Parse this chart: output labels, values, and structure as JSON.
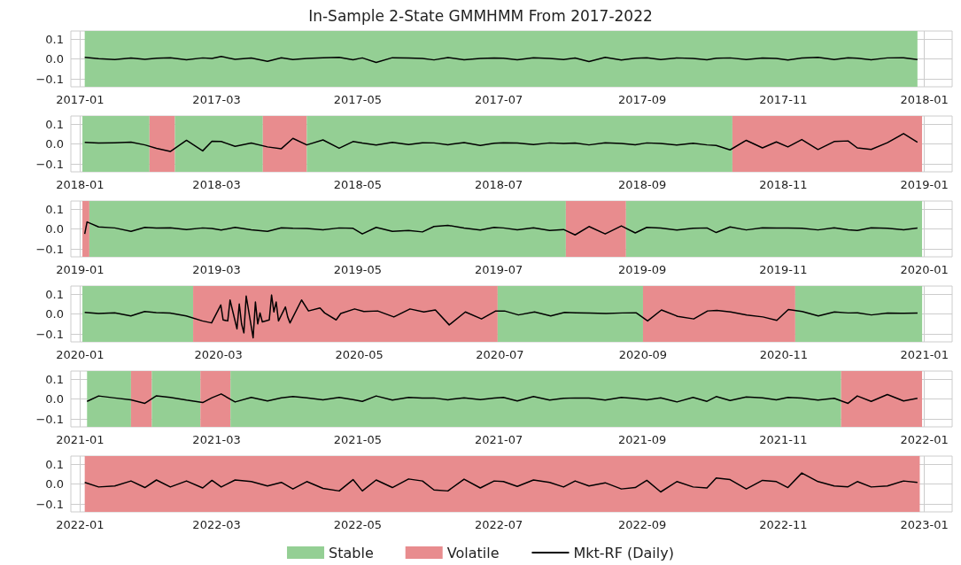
{
  "chart_data": [
    {
      "type": "line",
      "title": "In-Sample 2-State GMMHMM From 2017-2022",
      "grid": true,
      "xlim": [
        "2016-12-28",
        "2018-01-13"
      ],
      "ylim": [
        -0.14,
        0.14
      ],
      "xticks": [
        {
          "value": "2017-01-01",
          "label": "2017-01"
        },
        {
          "value": "2017-03-01",
          "label": "2017-03"
        },
        {
          "value": "2017-05-01",
          "label": "2017-05"
        },
        {
          "value": "2017-07-01",
          "label": "2017-07"
        },
        {
          "value": "2017-09-01",
          "label": "2017-09"
        },
        {
          "value": "2017-11-01",
          "label": "2017-11"
        },
        {
          "value": "2018-01-01",
          "label": "2018-01"
        }
      ],
      "yticks": [
        {
          "value": -0.1,
          "label": "−0.1"
        },
        {
          "value": 0,
          "label": "0.0"
        },
        {
          "value": 0.1,
          "label": "0.1"
        }
      ],
      "bands": [
        {
          "axis": "x",
          "from": "2017-01-03",
          "to": "2017-12-29",
          "label": "Stable",
          "color": "#94cf94"
        }
      ],
      "series": [
        {
          "color": "#000000",
          "x": [
            "2017-01-03",
            "2017-01-09",
            "2017-01-16",
            "2017-01-23",
            "2017-01-29",
            "2017-02-03",
            "2017-02-09",
            "2017-02-16",
            "2017-02-23",
            "2017-02-27",
            "2017-03-03",
            "2017-03-09",
            "2017-03-16",
            "2017-03-23",
            "2017-03-29",
            "2017-04-03",
            "2017-04-09",
            "2017-04-16",
            "2017-04-23",
            "2017-04-29",
            "2017-05-03",
            "2017-05-09",
            "2017-05-16",
            "2017-05-23",
            "2017-05-29",
            "2017-06-03",
            "2017-06-09",
            "2017-06-16",
            "2017-06-23",
            "2017-06-29",
            "2017-07-03",
            "2017-07-09",
            "2017-07-16",
            "2017-07-23",
            "2017-07-29",
            "2017-08-03",
            "2017-08-09",
            "2017-08-16",
            "2017-08-23",
            "2017-08-29",
            "2017-09-03",
            "2017-09-09",
            "2017-09-16",
            "2017-09-23",
            "2017-09-29",
            "2017-10-03",
            "2017-10-09",
            "2017-10-16",
            "2017-10-23",
            "2017-10-29",
            "2017-11-03",
            "2017-11-09",
            "2017-11-16",
            "2017-11-23",
            "2017-11-29",
            "2017-12-03",
            "2017-12-09",
            "2017-12-16",
            "2017-12-23",
            "2017-12-29"
          ],
          "values": [
            0.008,
            0.001,
            -0.003,
            0.004,
            -0.002,
            0.003,
            0.006,
            -0.004,
            0.005,
            0.002,
            0.012,
            -0.002,
            0.004,
            -0.012,
            0.006,
            -0.003,
            0.002,
            0.006,
            0.008,
            -0.004,
            0.005,
            -0.018,
            0.006,
            0.004,
            0.002,
            -0.005,
            0.007,
            -0.004,
            0.002,
            0.004,
            0.003,
            -0.004,
            0.006,
            0.002,
            -0.003,
            0.004,
            -0.013,
            0.008,
            -0.006,
            0.003,
            0.006,
            -0.003,
            0.005,
            0.002,
            -0.004,
            0.003,
            0.005,
            -0.003,
            0.004,
            0.002,
            -0.006,
            0.004,
            0.008,
            -0.003,
            0.006,
            0.003,
            -0.004,
            0.005,
            0.006,
            -0.003
          ]
        }
      ]
    },
    {
      "type": "line",
      "grid": true,
      "xlim": [
        "2017-12-28",
        "2019-01-13"
      ],
      "ylim": [
        -0.14,
        0.14
      ],
      "xticks": [
        {
          "value": "2018-01-01",
          "label": "2018-01"
        },
        {
          "value": "2018-03-01",
          "label": "2018-03"
        },
        {
          "value": "2018-05-01",
          "label": "2018-05"
        },
        {
          "value": "2018-07-01",
          "label": "2018-07"
        },
        {
          "value": "2018-09-01",
          "label": "2018-09"
        },
        {
          "value": "2018-11-01",
          "label": "2018-11"
        },
        {
          "value": "2019-01-01",
          "label": "2019-01"
        }
      ],
      "yticks": [
        {
          "value": -0.1,
          "label": "−0.1"
        },
        {
          "value": 0,
          "label": "0.0"
        },
        {
          "value": 0.1,
          "label": "0.1"
        }
      ],
      "bands": [
        {
          "axis": "x",
          "from": "2018-01-02",
          "to": "2018-01-31",
          "color": "#94cf94"
        },
        {
          "axis": "x",
          "from": "2018-01-31",
          "to": "2018-02-11",
          "color": "#e88c8e"
        },
        {
          "axis": "x",
          "from": "2018-02-11",
          "to": "2018-03-21",
          "color": "#94cf94"
        },
        {
          "axis": "x",
          "from": "2018-03-21",
          "to": "2018-04-09",
          "color": "#e88c8e"
        },
        {
          "axis": "x",
          "from": "2018-04-09",
          "to": "2018-10-10",
          "color": "#94cf94"
        },
        {
          "axis": "x",
          "from": "2018-10-10",
          "to": "2018-12-31",
          "color": "#e88c8e"
        }
      ],
      "series": [
        {
          "color": "#000000",
          "x": [
            "2018-01-03",
            "2018-01-09",
            "2018-01-16",
            "2018-01-23",
            "2018-01-29",
            "2018-02-03",
            "2018-02-09",
            "2018-02-16",
            "2018-02-23",
            "2018-02-27",
            "2018-03-03",
            "2018-03-09",
            "2018-03-16",
            "2018-03-23",
            "2018-03-29",
            "2018-04-03",
            "2018-04-09",
            "2018-04-16",
            "2018-04-23",
            "2018-04-29",
            "2018-05-03",
            "2018-05-09",
            "2018-05-16",
            "2018-05-23",
            "2018-05-29",
            "2018-06-03",
            "2018-06-09",
            "2018-06-16",
            "2018-06-23",
            "2018-06-29",
            "2018-07-03",
            "2018-07-09",
            "2018-07-16",
            "2018-07-23",
            "2018-07-29",
            "2018-08-03",
            "2018-08-09",
            "2018-08-16",
            "2018-08-23",
            "2018-08-29",
            "2018-09-03",
            "2018-09-09",
            "2018-09-16",
            "2018-09-23",
            "2018-09-29",
            "2018-10-03",
            "2018-10-09",
            "2018-10-16",
            "2018-10-23",
            "2018-10-29",
            "2018-11-03",
            "2018-11-09",
            "2018-11-16",
            "2018-11-23",
            "2018-11-29",
            "2018-12-03",
            "2018-12-09",
            "2018-12-16",
            "2018-12-23",
            "2018-12-29"
          ],
          "values": [
            0.008,
            0.004,
            0.006,
            0.009,
            -0.005,
            -0.022,
            -0.038,
            0.018,
            -0.035,
            0.013,
            0.012,
            -0.012,
            0.004,
            -0.015,
            -0.024,
            0.028,
            -0.005,
            0.02,
            -0.022,
            0.012,
            0.004,
            -0.006,
            0.008,
            -0.003,
            0.006,
            0.005,
            -0.004,
            0.007,
            -0.008,
            0.003,
            0.006,
            0.004,
            -0.003,
            0.005,
            0.002,
            0.004,
            -0.005,
            0.006,
            0.002,
            -0.004,
            0.005,
            0.002,
            -0.006,
            0.003,
            -0.005,
            -0.008,
            -0.03,
            0.018,
            -0.02,
            0.01,
            -0.015,
            0.022,
            -0.028,
            0.012,
            0.015,
            -0.02,
            -0.028,
            0.006,
            0.052,
            0.008
          ]
        }
      ]
    },
    {
      "type": "line",
      "grid": true,
      "xlim": [
        "2018-12-28",
        "2020-01-13"
      ],
      "ylim": [
        -0.14,
        0.14
      ],
      "xticks": [
        {
          "value": "2019-01-01",
          "label": "2019-01"
        },
        {
          "value": "2019-03-01",
          "label": "2019-03"
        },
        {
          "value": "2019-05-01",
          "label": "2019-05"
        },
        {
          "value": "2019-07-01",
          "label": "2019-07"
        },
        {
          "value": "2019-09-01",
          "label": "2019-09"
        },
        {
          "value": "2019-11-01",
          "label": "2019-11"
        },
        {
          "value": "2020-01-01",
          "label": "2020-01"
        }
      ],
      "yticks": [
        {
          "value": -0.1,
          "label": "−0.1"
        },
        {
          "value": 0,
          "label": "0.0"
        },
        {
          "value": 0.1,
          "label": "0.1"
        }
      ],
      "bands": [
        {
          "axis": "x",
          "from": "2019-01-02",
          "to": "2019-01-05",
          "color": "#e88c8e"
        },
        {
          "axis": "x",
          "from": "2019-01-05",
          "to": "2019-07-30",
          "color": "#94cf94"
        },
        {
          "axis": "x",
          "from": "2019-07-30",
          "to": "2019-08-25",
          "color": "#e88c8e"
        },
        {
          "axis": "x",
          "from": "2019-08-25",
          "to": "2019-12-31",
          "color": "#94cf94"
        }
      ],
      "series": [
        {
          "color": "#000000",
          "x": [
            "2019-01-03",
            "2019-01-04",
            "2019-01-09",
            "2019-01-16",
            "2019-01-23",
            "2019-01-29",
            "2019-02-03",
            "2019-02-09",
            "2019-02-16",
            "2019-02-23",
            "2019-02-27",
            "2019-03-03",
            "2019-03-09",
            "2019-03-16",
            "2019-03-23",
            "2019-03-29",
            "2019-04-03",
            "2019-04-09",
            "2019-04-16",
            "2019-04-23",
            "2019-04-29",
            "2019-05-03",
            "2019-05-09",
            "2019-05-16",
            "2019-05-23",
            "2019-05-29",
            "2019-06-03",
            "2019-06-09",
            "2019-06-16",
            "2019-06-23",
            "2019-06-29",
            "2019-07-03",
            "2019-07-09",
            "2019-07-16",
            "2019-07-23",
            "2019-07-29",
            "2019-08-03",
            "2019-08-09",
            "2019-08-16",
            "2019-08-23",
            "2019-08-29",
            "2019-09-03",
            "2019-09-09",
            "2019-09-16",
            "2019-09-23",
            "2019-09-29",
            "2019-10-03",
            "2019-10-09",
            "2019-10-16",
            "2019-10-23",
            "2019-10-29",
            "2019-11-03",
            "2019-11-09",
            "2019-11-16",
            "2019-11-23",
            "2019-11-29",
            "2019-12-03",
            "2019-12-09",
            "2019-12-16",
            "2019-12-23",
            "2019-12-29"
          ],
          "values": [
            -0.025,
            0.035,
            0.01,
            0.005,
            -0.012,
            0.008,
            0.004,
            0.006,
            -0.003,
            0.005,
            0.002,
            -0.006,
            0.008,
            -0.004,
            -0.012,
            0.006,
            0.003,
            0.002,
            -0.004,
            0.005,
            0.003,
            -0.025,
            0.008,
            -0.012,
            -0.008,
            -0.015,
            0.012,
            0.018,
            0.004,
            -0.006,
            0.008,
            0.005,
            -0.004,
            0.006,
            -0.008,
            -0.003,
            -0.03,
            0.012,
            -0.025,
            0.015,
            -0.02,
            0.008,
            0.004,
            -0.006,
            0.003,
            0.005,
            -0.018,
            0.01,
            -0.005,
            0.006,
            0.004,
            0.004,
            0.003,
            -0.005,
            0.006,
            -0.004,
            -0.008,
            0.006,
            0.003,
            -0.004,
            0.004
          ]
        }
      ]
    },
    {
      "type": "line",
      "grid": true,
      "xlim": [
        "2019-12-28",
        "2021-01-13"
      ],
      "ylim": [
        -0.14,
        0.14
      ],
      "xticks": [
        {
          "value": "2020-01-01",
          "label": "2020-01"
        },
        {
          "value": "2020-03-01",
          "label": "2020-03"
        },
        {
          "value": "2020-05-01",
          "label": "2020-05"
        },
        {
          "value": "2020-07-01",
          "label": "2020-07"
        },
        {
          "value": "2020-09-01",
          "label": "2020-09"
        },
        {
          "value": "2020-11-01",
          "label": "2020-11"
        },
        {
          "value": "2021-01-01",
          "label": "2021-01"
        }
      ],
      "yticks": [
        {
          "value": -0.1,
          "label": "−0.1"
        },
        {
          "value": 0,
          "label": "0.0"
        },
        {
          "value": 0.1,
          "label": "0.1"
        }
      ],
      "bands": [
        {
          "axis": "x",
          "from": "2020-01-02",
          "to": "2020-02-19",
          "color": "#94cf94"
        },
        {
          "axis": "x",
          "from": "2020-02-19",
          "to": "2020-06-30",
          "color": "#e88c8e"
        },
        {
          "axis": "x",
          "from": "2020-06-30",
          "to": "2020-09-01",
          "color": "#94cf94"
        },
        {
          "axis": "x",
          "from": "2020-09-01",
          "to": "2020-11-06",
          "color": "#e88c8e"
        },
        {
          "axis": "x",
          "from": "2020-11-06",
          "to": "2020-12-31",
          "color": "#94cf94"
        }
      ],
      "series": [
        {
          "color": "#000000",
          "x": [
            "2020-01-03",
            "2020-01-09",
            "2020-01-16",
            "2020-01-23",
            "2020-01-29",
            "2020-02-03",
            "2020-02-09",
            "2020-02-16",
            "2020-02-23",
            "2020-02-27",
            "2020-03-02",
            "2020-03-03",
            "2020-03-05",
            "2020-03-06",
            "2020-03-09",
            "2020-03-10",
            "2020-03-11",
            "2020-03-12",
            "2020-03-13",
            "2020-03-16",
            "2020-03-17",
            "2020-03-18",
            "2020-03-19",
            "2020-03-20",
            "2020-03-23",
            "2020-03-24",
            "2020-03-25",
            "2020-03-26",
            "2020-03-27",
            "2020-03-30",
            "2020-03-31",
            "2020-04-01",
            "2020-04-06",
            "2020-04-09",
            "2020-04-14",
            "2020-04-16",
            "2020-04-21",
            "2020-04-23",
            "2020-04-29",
            "2020-05-03",
            "2020-05-09",
            "2020-05-16",
            "2020-05-23",
            "2020-05-29",
            "2020-06-03",
            "2020-06-09",
            "2020-06-16",
            "2020-06-23",
            "2020-06-29",
            "2020-07-03",
            "2020-07-09",
            "2020-07-16",
            "2020-07-23",
            "2020-07-29",
            "2020-08-03",
            "2020-08-09",
            "2020-08-16",
            "2020-08-23",
            "2020-08-29",
            "2020-09-03",
            "2020-09-09",
            "2020-09-16",
            "2020-09-23",
            "2020-09-29",
            "2020-10-03",
            "2020-10-09",
            "2020-10-16",
            "2020-10-23",
            "2020-10-29",
            "2020-11-03",
            "2020-11-09",
            "2020-11-16",
            "2020-11-23",
            "2020-11-29",
            "2020-12-03",
            "2020-12-09",
            "2020-12-16",
            "2020-12-23",
            "2020-12-29"
          ],
          "values": [
            0.008,
            0.002,
            0.006,
            -0.01,
            0.012,
            0.007,
            0.004,
            -0.01,
            -0.035,
            -0.045,
            0.045,
            -0.03,
            -0.035,
            0.07,
            -0.075,
            0.05,
            -0.05,
            -0.095,
            0.09,
            -0.12,
            0.06,
            -0.05,
            0.005,
            -0.04,
            -0.03,
            0.095,
            0.01,
            0.06,
            -0.035,
            0.035,
            -0.015,
            -0.045,
            0.07,
            0.015,
            0.03,
            0.005,
            -0.03,
            0.002,
            0.025,
            0.012,
            0.015,
            -0.015,
            0.025,
            0.01,
            0.02,
            -0.055,
            0.01,
            -0.025,
            0.014,
            0.015,
            -0.005,
            0.01,
            -0.01,
            0.008,
            0.006,
            0.004,
            0.002,
            0.005,
            0.006,
            -0.035,
            0.02,
            -0.012,
            -0.025,
            0.015,
            0.018,
            0.01,
            -0.006,
            -0.015,
            -0.032,
            0.022,
            0.012,
            -0.01,
            0.01,
            0.005,
            0.006,
            -0.005,
            0.004,
            0.003,
            0.004
          ]
        }
      ]
    },
    {
      "type": "line",
      "grid": true,
      "xlim": [
        "2020-12-28",
        "2022-01-13"
      ],
      "ylim": [
        -0.14,
        0.14
      ],
      "xticks": [
        {
          "value": "2021-01-01",
          "label": "2021-01"
        },
        {
          "value": "2021-03-01",
          "label": "2021-03"
        },
        {
          "value": "2021-05-01",
          "label": "2021-05"
        },
        {
          "value": "2021-07-01",
          "label": "2021-07"
        },
        {
          "value": "2021-09-01",
          "label": "2021-09"
        },
        {
          "value": "2021-11-01",
          "label": "2021-11"
        },
        {
          "value": "2022-01-01",
          "label": "2022-01"
        }
      ],
      "yticks": [
        {
          "value": -0.1,
          "label": "−0.1"
        },
        {
          "value": 0,
          "label": "0.0"
        },
        {
          "value": 0.1,
          "label": "0.1"
        }
      ],
      "bands": [
        {
          "axis": "x",
          "from": "2021-01-04",
          "to": "2021-01-23",
          "color": "#94cf94"
        },
        {
          "axis": "x",
          "from": "2021-01-23",
          "to": "2021-02-01",
          "color": "#e88c8e"
        },
        {
          "axis": "x",
          "from": "2021-02-01",
          "to": "2021-02-22",
          "color": "#94cf94"
        },
        {
          "axis": "x",
          "from": "2021-02-22",
          "to": "2021-03-07",
          "color": "#e88c8e"
        },
        {
          "axis": "x",
          "from": "2021-03-07",
          "to": "2021-11-26",
          "color": "#94cf94"
        },
        {
          "axis": "x",
          "from": "2021-11-26",
          "to": "2021-12-31",
          "color": "#e88c8e"
        }
      ],
      "series": [
        {
          "color": "#000000",
          "x": [
            "2021-01-04",
            "2021-01-09",
            "2021-01-16",
            "2021-01-23",
            "2021-01-29",
            "2021-02-03",
            "2021-02-09",
            "2021-02-16",
            "2021-02-23",
            "2021-02-27",
            "2021-03-03",
            "2021-03-09",
            "2021-03-16",
            "2021-03-23",
            "2021-03-29",
            "2021-04-03",
            "2021-04-09",
            "2021-04-16",
            "2021-04-23",
            "2021-04-29",
            "2021-05-03",
            "2021-05-09",
            "2021-05-16",
            "2021-05-23",
            "2021-05-29",
            "2021-06-03",
            "2021-06-09",
            "2021-06-16",
            "2021-06-23",
            "2021-06-29",
            "2021-07-03",
            "2021-07-09",
            "2021-07-16",
            "2021-07-23",
            "2021-07-29",
            "2021-08-03",
            "2021-08-09",
            "2021-08-16",
            "2021-08-23",
            "2021-08-29",
            "2021-09-03",
            "2021-09-09",
            "2021-09-16",
            "2021-09-23",
            "2021-09-29",
            "2021-10-03",
            "2021-10-09",
            "2021-10-16",
            "2021-10-23",
            "2021-10-29",
            "2021-11-03",
            "2021-11-09",
            "2021-11-16",
            "2021-11-23",
            "2021-11-29",
            "2021-12-03",
            "2021-12-09",
            "2021-12-16",
            "2021-12-23",
            "2021-12-29"
          ],
          "values": [
            -0.012,
            0.015,
            0.005,
            -0.004,
            -0.022,
            0.016,
            0.008,
            -0.006,
            -0.018,
            0.006,
            0.025,
            -0.015,
            0.008,
            -0.01,
            0.006,
            0.012,
            0.006,
            -0.004,
            0.008,
            -0.003,
            -0.012,
            0.015,
            -0.006,
            0.008,
            0.004,
            0.005,
            -0.004,
            0.006,
            -0.003,
            0.004,
            0.008,
            -0.01,
            0.012,
            -0.006,
            0.003,
            0.005,
            0.004,
            -0.006,
            0.008,
            0.002,
            -0.004,
            0.006,
            -0.015,
            0.008,
            -0.012,
            0.012,
            -0.008,
            0.01,
            0.006,
            -0.004,
            0.008,
            0.004,
            -0.006,
            0.003,
            -0.022,
            0.015,
            -0.012,
            0.022,
            -0.01,
            0.003
          ]
        }
      ]
    },
    {
      "type": "line",
      "grid": true,
      "legend": "bottom",
      "xlim": [
        "2021-12-28",
        "2023-01-13"
      ],
      "ylim": [
        -0.14,
        0.14
      ],
      "xticks": [
        {
          "value": "2022-01-01",
          "label": "2022-01"
        },
        {
          "value": "2022-03-01",
          "label": "2022-03"
        },
        {
          "value": "2022-05-01",
          "label": "2022-05"
        },
        {
          "value": "2022-07-01",
          "label": "2022-07"
        },
        {
          "value": "2022-09-01",
          "label": "2022-09"
        },
        {
          "value": "2022-11-01",
          "label": "2022-11"
        },
        {
          "value": "2023-01-01",
          "label": "2023-01"
        }
      ],
      "yticks": [
        {
          "value": -0.1,
          "label": "−0.1"
        },
        {
          "value": 0,
          "label": "0.0"
        },
        {
          "value": 0.1,
          "label": "0.1"
        }
      ],
      "bands": [
        {
          "axis": "x",
          "from": "2022-01-03",
          "to": "2022-12-30",
          "label": "Volatile",
          "color": "#e88c8e"
        }
      ],
      "series": [
        {
          "name": "Mkt-RF (Daily)",
          "color": "#000000",
          "x": [
            "2022-01-03",
            "2022-01-09",
            "2022-01-16",
            "2022-01-23",
            "2022-01-29",
            "2022-02-03",
            "2022-02-09",
            "2022-02-16",
            "2022-02-23",
            "2022-02-27",
            "2022-03-03",
            "2022-03-09",
            "2022-03-16",
            "2022-03-23",
            "2022-03-29",
            "2022-04-03",
            "2022-04-09",
            "2022-04-16",
            "2022-04-23",
            "2022-04-29",
            "2022-05-03",
            "2022-05-09",
            "2022-05-16",
            "2022-05-23",
            "2022-05-29",
            "2022-06-03",
            "2022-06-09",
            "2022-06-16",
            "2022-06-23",
            "2022-06-29",
            "2022-07-03",
            "2022-07-09",
            "2022-07-16",
            "2022-07-23",
            "2022-07-29",
            "2022-08-03",
            "2022-08-09",
            "2022-08-16",
            "2022-08-23",
            "2022-08-29",
            "2022-09-03",
            "2022-09-09",
            "2022-09-16",
            "2022-09-23",
            "2022-09-29",
            "2022-10-03",
            "2022-10-09",
            "2022-10-16",
            "2022-10-23",
            "2022-10-29",
            "2022-11-03",
            "2022-11-09",
            "2022-11-16",
            "2022-11-23",
            "2022-11-29",
            "2022-12-03",
            "2022-12-09",
            "2022-12-16",
            "2022-12-23",
            "2022-12-29"
          ],
          "values": [
            0.008,
            -0.015,
            -0.01,
            0.015,
            -0.018,
            0.02,
            -0.015,
            0.015,
            -0.02,
            0.018,
            -0.015,
            0.02,
            0.012,
            -0.01,
            0.008,
            -0.025,
            0.012,
            -0.022,
            -0.035,
            0.022,
            -0.035,
            0.02,
            -0.018,
            0.025,
            0.015,
            -0.03,
            -0.035,
            0.024,
            -0.02,
            0.015,
            0.012,
            -0.012,
            0.02,
            0.008,
            -0.015,
            0.015,
            -0.01,
            0.006,
            -0.025,
            -0.018,
            0.018,
            -0.04,
            0.012,
            -0.015,
            -0.02,
            0.03,
            0.022,
            -0.025,
            0.018,
            0.012,
            -0.018,
            0.055,
            0.012,
            -0.01,
            -0.014,
            0.012,
            -0.015,
            -0.01,
            0.015,
            0.008
          ]
        }
      ]
    }
  ]
}
